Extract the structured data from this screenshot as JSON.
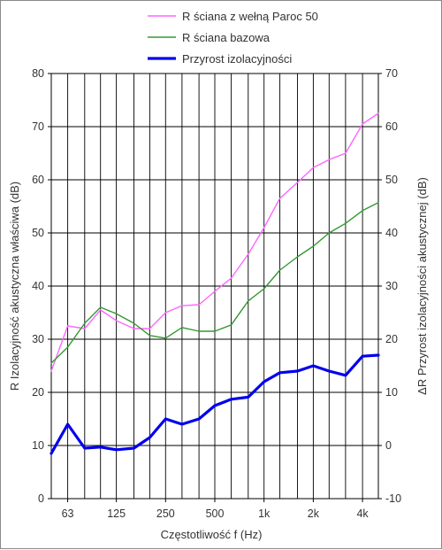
{
  "chart_data": {
    "type": "line",
    "x_tick_labels": [
      "63",
      "125",
      "250",
      "500",
      "1k",
      "2k",
      "4k"
    ],
    "x_tick_values_hz": [
      63,
      125,
      250,
      500,
      1000,
      2000,
      4000
    ],
    "x_scale": "log",
    "x_hz": [
      50,
      63,
      80,
      100,
      125,
      160,
      200,
      250,
      315,
      400,
      500,
      630,
      800,
      1000,
      1250,
      1600,
      2000,
      2500,
      3150,
      4000,
      5000
    ],
    "xlim_hz": [
      50,
      5000
    ],
    "xlabel": "Częstotliwość f  (Hz)",
    "ylabel_left": "R Izolacyjność akustyczna właściwa (dB)",
    "ylabel_right": "ΔR Przyrost izolacyjności akustycznej (dB)",
    "y_left_ticks": [
      0,
      10,
      20,
      30,
      40,
      50,
      60,
      70,
      80
    ],
    "y_right_ticks": [
      -10,
      0,
      10,
      20,
      30,
      40,
      50,
      60,
      70
    ],
    "ylim_left": [
      0,
      80
    ],
    "ylim_right": [
      -10,
      70
    ],
    "grid": true,
    "legend_position": "top",
    "series": [
      {
        "name": "R ściana z wełną Paroc 50",
        "axis": "left",
        "color": "#ff66ff",
        "values": [
          24,
          32.5,
          32,
          35.5,
          33.5,
          32,
          32,
          35,
          36.3,
          36.5,
          39,
          41.5,
          46,
          51,
          56.5,
          59.5,
          62.3,
          63.8,
          65,
          70.5,
          72.5
        ]
      },
      {
        "name": "R ściana bazowa",
        "axis": "left",
        "color": "#339933",
        "values": [
          25.5,
          28.5,
          33,
          36,
          34.8,
          33,
          30.7,
          30.2,
          32.2,
          31.5,
          31.5,
          32.7,
          37.2,
          39.5,
          43,
          45.5,
          47.5,
          50,
          51.8,
          54.2,
          55.7
        ]
      },
      {
        "name": "Przyrost izolacyjności",
        "axis": "right",
        "color": "#0000ee",
        "values": [
          -1.5,
          4,
          -0.5,
          -0.3,
          -0.8,
          -0.5,
          1.5,
          5,
          4,
          5,
          7.5,
          8.7,
          9.1,
          12,
          13.7,
          14,
          15,
          14,
          13.2,
          16.8,
          17
        ]
      }
    ]
  }
}
